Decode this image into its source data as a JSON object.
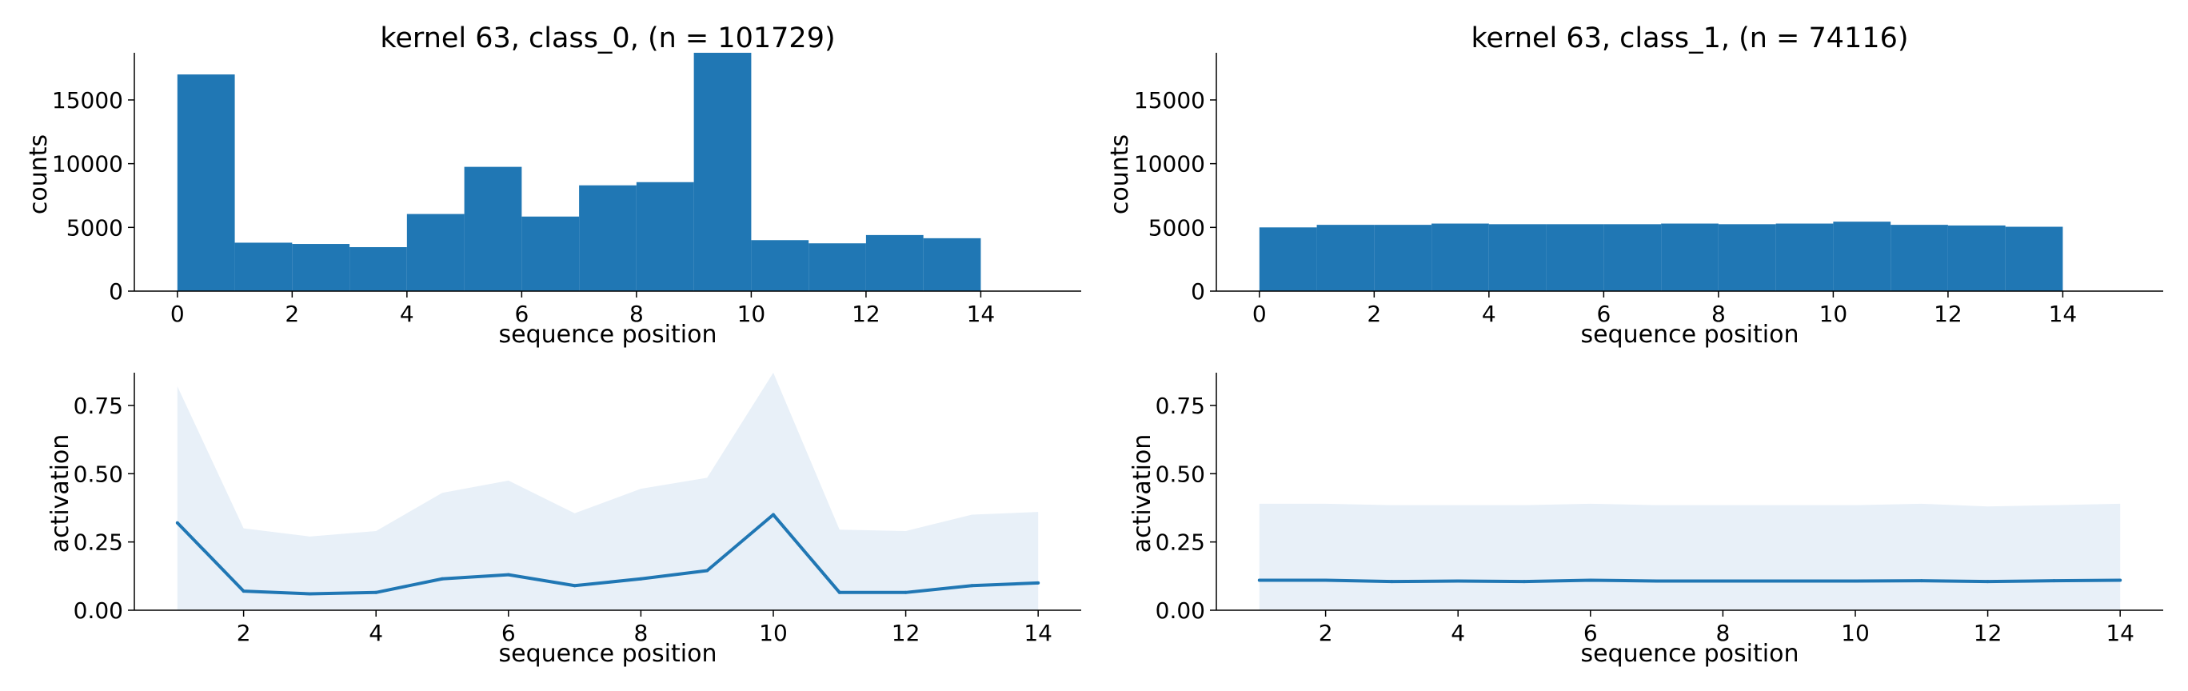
{
  "colors": {
    "bar": "#2077b4",
    "line": "#2077b4",
    "band": "#e8f0f8",
    "axis": "#000000",
    "background": "#ffffff"
  },
  "chart_data": [
    {
      "type": "bar",
      "title": "kernel 63, class_0, (n = 101729)",
      "xlabel": "sequence position",
      "ylabel": "counts",
      "xlim": [
        -0.75,
        15.75
      ],
      "ylim": [
        0,
        18700
      ],
      "xticks": [
        0,
        2,
        4,
        6,
        8,
        10,
        12,
        14
      ],
      "yticks": [
        0,
        5000,
        10000,
        15000
      ],
      "bin_edges": [
        0,
        1,
        2,
        3,
        4,
        5,
        6,
        7,
        8,
        9,
        10,
        11,
        12,
        13,
        14
      ],
      "values": [
        17000,
        3800,
        3700,
        3450,
        6050,
        9750,
        5850,
        8300,
        8550,
        18700,
        4000,
        3750,
        4400,
        4150
      ]
    },
    {
      "type": "bar",
      "title": "kernel 63, class_1, (n = 74116)",
      "xlabel": "sequence position",
      "ylabel": "counts",
      "xlim": [
        -0.75,
        15.75
      ],
      "ylim": [
        0,
        18700
      ],
      "xticks": [
        0,
        2,
        4,
        6,
        8,
        10,
        12,
        14
      ],
      "yticks": [
        0,
        5000,
        10000,
        15000
      ],
      "bin_edges": [
        0,
        1,
        2,
        3,
        4,
        5,
        6,
        7,
        8,
        9,
        10,
        11,
        12,
        13,
        14
      ],
      "values": [
        5000,
        5200,
        5200,
        5300,
        5250,
        5250,
        5250,
        5300,
        5250,
        5300,
        5450,
        5200,
        5150,
        5050
      ]
    },
    {
      "type": "line",
      "title": "",
      "xlabel": "sequence position",
      "ylabel": "activation",
      "xlim": [
        0.35,
        14.65
      ],
      "ylim": [
        0,
        0.87
      ],
      "xticks": [
        2,
        4,
        6,
        8,
        10,
        12,
        14
      ],
      "yticks": [
        0.0,
        0.25,
        0.5,
        0.75
      ],
      "ytick_labels": [
        "0.00",
        "0.25",
        "0.50",
        "0.75"
      ],
      "x": [
        1,
        2,
        3,
        4,
        5,
        6,
        7,
        8,
        9,
        10,
        11,
        12,
        13,
        14
      ],
      "series": [
        {
          "values": [
            0.32,
            0.07,
            0.06,
            0.065,
            0.115,
            0.13,
            0.09,
            0.115,
            0.145,
            0.35,
            0.065,
            0.065,
            0.09,
            0.1
          ],
          "band_upper": [
            0.82,
            0.3,
            0.27,
            0.29,
            0.43,
            0.475,
            0.355,
            0.445,
            0.485,
            0.87,
            0.295,
            0.29,
            0.35,
            0.36
          ],
          "band_lower": [
            0,
            0,
            0,
            0,
            0,
            0,
            0,
            0,
            0,
            0,
            0,
            0,
            0,
            0
          ]
        }
      ]
    },
    {
      "type": "line",
      "title": "",
      "xlabel": "sequence position",
      "ylabel": "activation",
      "xlim": [
        0.35,
        14.65
      ],
      "ylim": [
        0,
        0.87
      ],
      "xticks": [
        2,
        4,
        6,
        8,
        10,
        12,
        14
      ],
      "yticks": [
        0.0,
        0.25,
        0.5,
        0.75
      ],
      "ytick_labels": [
        "0.00",
        "0.25",
        "0.50",
        "0.75"
      ],
      "x": [
        1,
        2,
        3,
        4,
        5,
        6,
        7,
        8,
        9,
        10,
        11,
        12,
        13,
        14
      ],
      "series": [
        {
          "values": [
            0.11,
            0.11,
            0.105,
            0.107,
            0.105,
            0.11,
            0.107,
            0.107,
            0.107,
            0.107,
            0.108,
            0.105,
            0.108,
            0.11
          ],
          "band_upper": [
            0.39,
            0.39,
            0.385,
            0.385,
            0.385,
            0.39,
            0.385,
            0.385,
            0.385,
            0.385,
            0.39,
            0.38,
            0.385,
            0.39
          ],
          "band_lower": [
            0,
            0,
            0,
            0,
            0,
            0,
            0,
            0,
            0,
            0,
            0,
            0,
            0,
            0
          ]
        }
      ]
    }
  ]
}
